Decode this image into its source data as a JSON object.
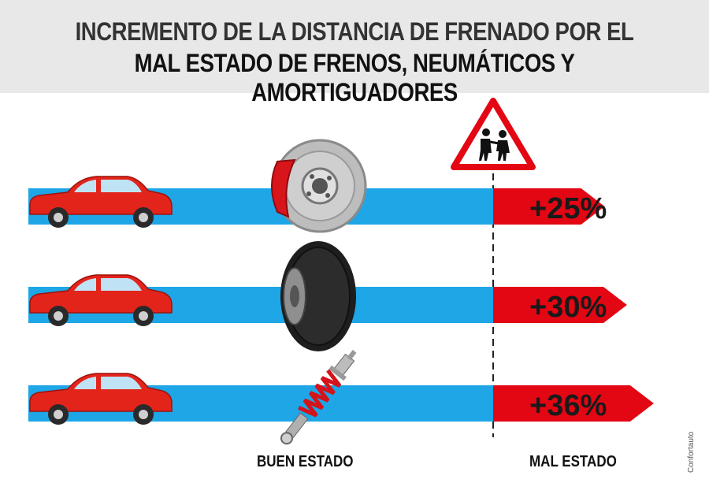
{
  "chart_data": {
    "type": "bar",
    "title_line1": "INCREMENTO DE LA DISTANCIA DE FRENADO POR EL",
    "title_line2": "MAL ESTADO DE FRENOS, NEUMÁTICOS Y AMORTIGUADORES",
    "categories": [
      "frenos-icon",
      "neumaticos-icon",
      "amortiguadores-icon"
    ],
    "series": [
      {
        "values": [
          100,
          100,
          100
        ]
      },
      {
        "values": [
          25,
          30,
          36
        ]
      }
    ],
    "data_labels": [
      "+25%",
      "+30%",
      "+36%"
    ],
    "xlabel_good": "BUEN ESTADO",
    "xlabel_bad": "MAL ESTADO",
    "colors": {
      "good": "#1ea6e6",
      "bad": "#e30613",
      "car": "#e3241b",
      "header": "#e8e8e8"
    }
  },
  "credit": "Confortauto"
}
